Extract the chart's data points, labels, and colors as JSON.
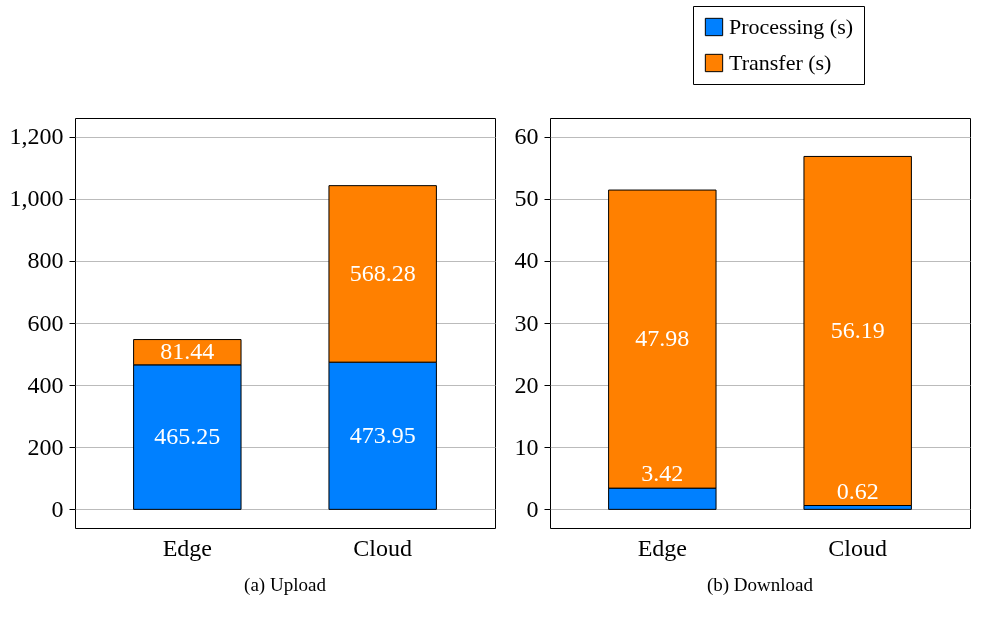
{
  "chart_data": [
    {
      "type": "bar",
      "title": "(a) Upload",
      "categories": [
        "Edge",
        "Cloud"
      ],
      "stacked": true,
      "data_labels": true,
      "grid": "y",
      "legend": "top right",
      "ylim": [
        -60,
        1260
      ],
      "yticks": [
        0,
        200,
        400,
        600,
        800,
        {
          "value": 1000,
          "label": "1,000"
        },
        {
          "value": 1200,
          "label": "1,200"
        }
      ],
      "series": [
        {
          "name": "Processing (s)",
          "color": "#0080ff",
          "values": [
            465.25,
            473.95
          ]
        },
        {
          "name": "Transfer (s)",
          "color": "#ff8000",
          "values": [
            81.44,
            568.28
          ]
        }
      ]
    },
    {
      "type": "bar",
      "title": "(b) Download",
      "categories": [
        "Edge",
        "Cloud"
      ],
      "stacked": true,
      "data_labels": true,
      "grid": "y",
      "legend": "top right",
      "ylim": [
        -3,
        63
      ],
      "yticks": [
        0,
        10,
        20,
        30,
        40,
        50,
        60
      ],
      "series": [
        {
          "name": "Processing (s)",
          "color": "#0080ff",
          "values": [
            3.42,
            0.62
          ]
        },
        {
          "name": "Transfer (s)",
          "color": "#ff8000",
          "values": [
            47.98,
            56.19
          ]
        }
      ]
    }
  ]
}
